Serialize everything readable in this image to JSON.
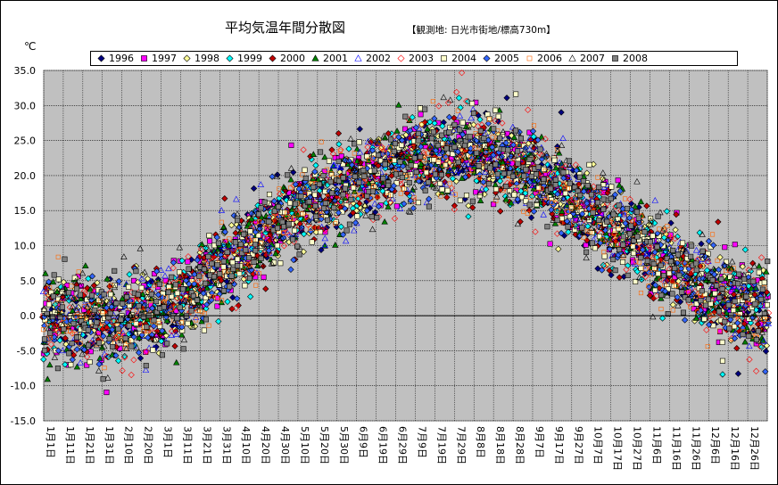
{
  "title": "平均気温年間分散図",
  "subtitle": "【観測地: 日光市街地/標高730m】",
  "unit": "℃",
  "chart_data": {
    "type": "scatter",
    "title": "平均気温年間分散図",
    "subtitle": "【観測地: 日光市街地/標高730m】",
    "ylabel": "℃",
    "ylim": [
      -15,
      35
    ],
    "yticks": [
      35,
      30,
      25,
      20,
      15,
      10,
      5,
      0,
      -5,
      -10,
      -15
    ],
    "ytick_labels": [
      "35.0",
      "30.0",
      "25.0",
      "20.0",
      "15.0",
      "10.0",
      "5.0",
      "0.0",
      "-5.0",
      "-10.0",
      "-15.0"
    ],
    "xlim_days": [
      1,
      365
    ],
    "xtick_labels": [
      "1月1日",
      "1月11日",
      "1月21日",
      "1月31日",
      "2月10日",
      "2月20日",
      "3月1日",
      "3月11日",
      "3月21日",
      "3月31日",
      "4月10日",
      "4月20日",
      "4月30日",
      "5月10日",
      "5月20日",
      "5月30日",
      "6月9日",
      "6月19日",
      "6月29日",
      "7月9日",
      "7月19日",
      "7月29日",
      "8月8日",
      "8月18日",
      "8月28日",
      "9月7日",
      "9月17日",
      "9月27日",
      "10月7日",
      "10月17日",
      "10月27日",
      "11月6日",
      "11月16日",
      "11月26日",
      "12月6日",
      "12月16日",
      "12月26日"
    ],
    "grid": true,
    "legend_position": "top",
    "plot_background": "#c0c0c0",
    "daily_mean_profile": {
      "x_days": [
        1,
        15,
        31,
        45,
        60,
        75,
        90,
        105,
        120,
        135,
        150,
        165,
        180,
        195,
        210,
        225,
        240,
        255,
        270,
        285,
        300,
        315,
        330,
        345,
        365
      ],
      "y_celsius": [
        0.5,
        -0.5,
        -1.0,
        -0.5,
        1.0,
        3.5,
        6.5,
        10.0,
        13.5,
        16.0,
        18.0,
        19.5,
        21.5,
        22.8,
        23.2,
        23.0,
        21.5,
        19.0,
        16.0,
        13.0,
        10.5,
        7.5,
        4.5,
        2.5,
        0.5
      ]
    },
    "spread_celsius": 3.0,
    "series": [
      {
        "name": "1996",
        "marker": "diamond-filled",
        "color": "#000080"
      },
      {
        "name": "1997",
        "marker": "square-filled",
        "color": "#ff00ff"
      },
      {
        "name": "1998",
        "marker": "diamond-filled",
        "color": "#ffff99"
      },
      {
        "name": "1999",
        "marker": "diamond-filled",
        "color": "#00ffff"
      },
      {
        "name": "2000",
        "marker": "diamond-filled",
        "color": "#c00000"
      },
      {
        "name": "2001",
        "marker": "triangle-filled",
        "color": "#008000"
      },
      {
        "name": "2002",
        "marker": "triangle-open",
        "color": "#0000ff"
      },
      {
        "name": "2003",
        "marker": "diamond-open",
        "color": "#ff0000"
      },
      {
        "name": "2004",
        "marker": "square-filled",
        "color": "#ffffcc"
      },
      {
        "name": "2005",
        "marker": "diamond-filled",
        "color": "#3366ff"
      },
      {
        "name": "2006",
        "marker": "square-open-small",
        "color": "#ff6600"
      },
      {
        "name": "2007",
        "marker": "triangle-open",
        "color": "#ffffcc"
      },
      {
        "name": "2008",
        "marker": "square-filled",
        "color": "#808080"
      }
    ]
  }
}
